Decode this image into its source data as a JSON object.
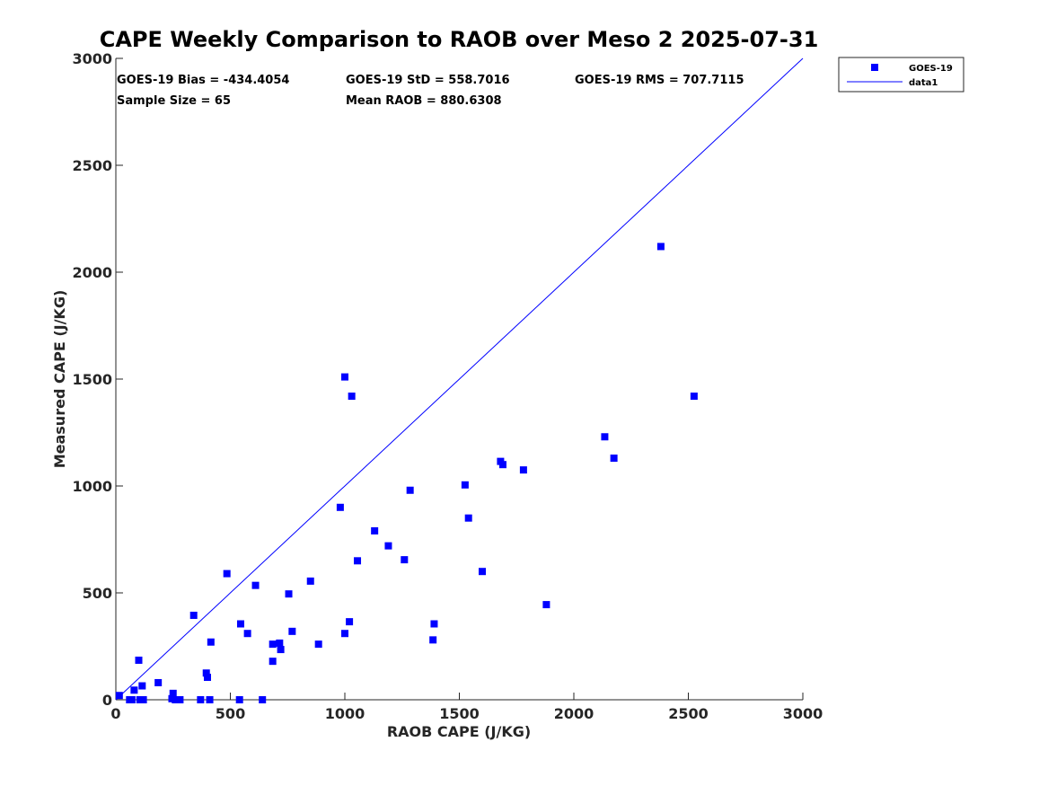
{
  "chart_data": {
    "type": "scatter",
    "title": "CAPE Weekly Comparison to RAOB over Meso 2 2025-07-31",
    "xlabel": "RAOB CAPE (J/KG)",
    "ylabel": "Measured CAPE (J/KG)",
    "xlim": [
      0,
      3000
    ],
    "ylim": [
      0,
      3000
    ],
    "xticks": [
      0,
      500,
      1000,
      1500,
      2000,
      2500,
      3000
    ],
    "yticks": [
      0,
      500,
      1000,
      1500,
      2000,
      2500,
      3000
    ],
    "grid": false,
    "legend_position": "outside-top-right",
    "colors": {
      "marker": "#0000ff",
      "line": "#0000ff",
      "axis": "#262626"
    },
    "stats": {
      "bias": "GOES-19 Bias = -434.4054",
      "std": "GOES-19 StD = 558.7016",
      "rms": "GOES-19 RMS = 707.7115",
      "sample_size": "Sample Size = 65",
      "mean_raob": "Mean RAOB = 880.6308"
    },
    "series": [
      {
        "name": "GOES-19",
        "kind": "scatter",
        "marker": "square",
        "points": [
          [
            15,
            20
          ],
          [
            60,
            0
          ],
          [
            70,
            0
          ],
          [
            80,
            45
          ],
          [
            100,
            185
          ],
          [
            105,
            0
          ],
          [
            115,
            65
          ],
          [
            120,
            0
          ],
          [
            185,
            80
          ],
          [
            245,
            5
          ],
          [
            250,
            30
          ],
          [
            260,
            0
          ],
          [
            280,
            0
          ],
          [
            340,
            395
          ],
          [
            370,
            0
          ],
          [
            395,
            125
          ],
          [
            400,
            105
          ],
          [
            410,
            0
          ],
          [
            415,
            270
          ],
          [
            485,
            590
          ],
          [
            540,
            0
          ],
          [
            545,
            355
          ],
          [
            575,
            310
          ],
          [
            610,
            535
          ],
          [
            640,
            0
          ],
          [
            685,
            260
          ],
          [
            685,
            180
          ],
          [
            715,
            265
          ],
          [
            720,
            235
          ],
          [
            755,
            495
          ],
          [
            770,
            320
          ],
          [
            850,
            555
          ],
          [
            885,
            260
          ],
          [
            980,
            900
          ],
          [
            1000,
            310
          ],
          [
            1000,
            1510
          ],
          [
            1020,
            365
          ],
          [
            1030,
            1420
          ],
          [
            1055,
            650
          ],
          [
            1130,
            790
          ],
          [
            1190,
            720
          ],
          [
            1260,
            655
          ],
          [
            1285,
            980
          ],
          [
            1385,
            280
          ],
          [
            1390,
            355
          ],
          [
            1525,
            1005
          ],
          [
            1540,
            850
          ],
          [
            1600,
            600
          ],
          [
            1680,
            1115
          ],
          [
            1690,
            1100
          ],
          [
            1780,
            1075
          ],
          [
            1880,
            445
          ],
          [
            2135,
            1230
          ],
          [
            2175,
            1130
          ],
          [
            2380,
            2120
          ],
          [
            2525,
            1420
          ]
        ]
      },
      {
        "name": "data1",
        "kind": "line",
        "points": [
          [
            0,
            0
          ],
          [
            3000,
            3000
          ]
        ]
      }
    ]
  }
}
